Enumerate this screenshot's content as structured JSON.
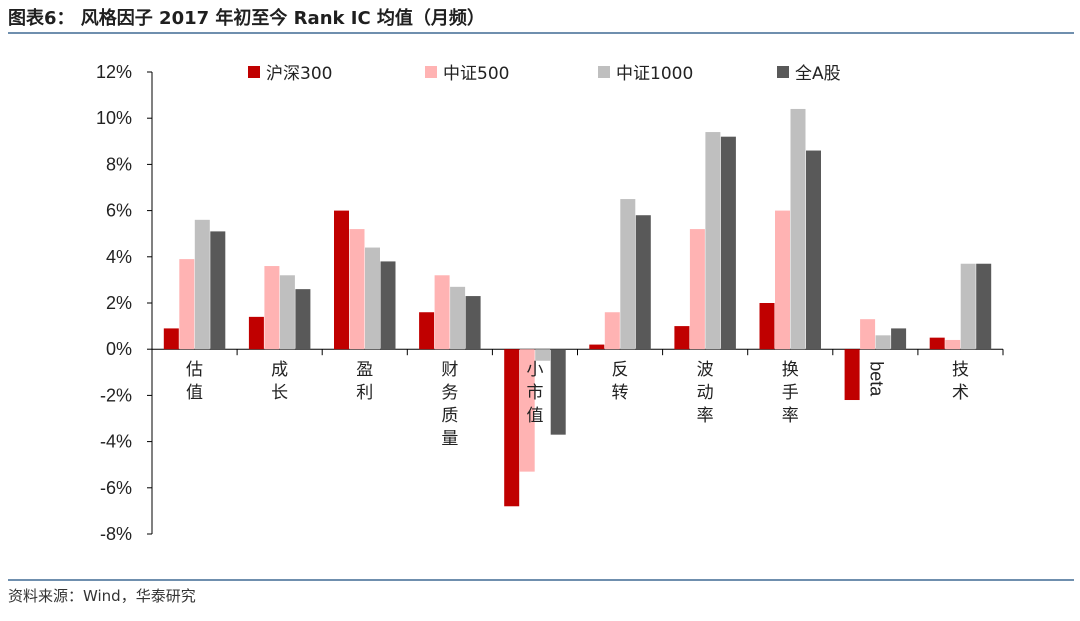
{
  "header": {
    "title": "图表6： 风格因子 2017 年初至今 Rank IC 均值（月频）"
  },
  "footer": {
    "source": "资料来源：Wind，华泰研究"
  },
  "colors": {
    "rule": "#6f8fae",
    "series": [
      "#c00000",
      "#ffb3b3",
      "#bfbfbf",
      "#595959"
    ]
  },
  "chart_data": {
    "type": "bar",
    "ylabel": "",
    "xlabel": "",
    "ylim": [
      -8,
      12
    ],
    "yticks": [
      "12%",
      "10%",
      "8%",
      "6%",
      "4%",
      "2%",
      "0%",
      "-2%",
      "-4%",
      "-6%",
      "-8%"
    ],
    "legend_position": "top",
    "categories": [
      "估值",
      "成长",
      "盈利",
      "财务质量",
      "小市值",
      "反转",
      "波动率",
      "换手率",
      "beta",
      "技术"
    ],
    "series": [
      {
        "name": "沪深300",
        "values": [
          0.9,
          1.4,
          6.0,
          1.6,
          -6.8,
          0.2,
          1.0,
          2.0,
          -2.2,
          0.5
        ]
      },
      {
        "name": "中证500",
        "values": [
          3.9,
          3.6,
          5.2,
          3.2,
          -5.3,
          1.6,
          5.2,
          6.0,
          1.3,
          0.4
        ]
      },
      {
        "name": "中证1000",
        "values": [
          5.6,
          3.2,
          4.4,
          2.7,
          -0.5,
          6.5,
          9.4,
          10.4,
          0.6,
          3.7
        ]
      },
      {
        "name": "全A股",
        "values": [
          5.1,
          2.6,
          3.8,
          2.3,
          -3.7,
          5.8,
          9.2,
          8.6,
          0.9,
          3.7
        ]
      }
    ]
  }
}
